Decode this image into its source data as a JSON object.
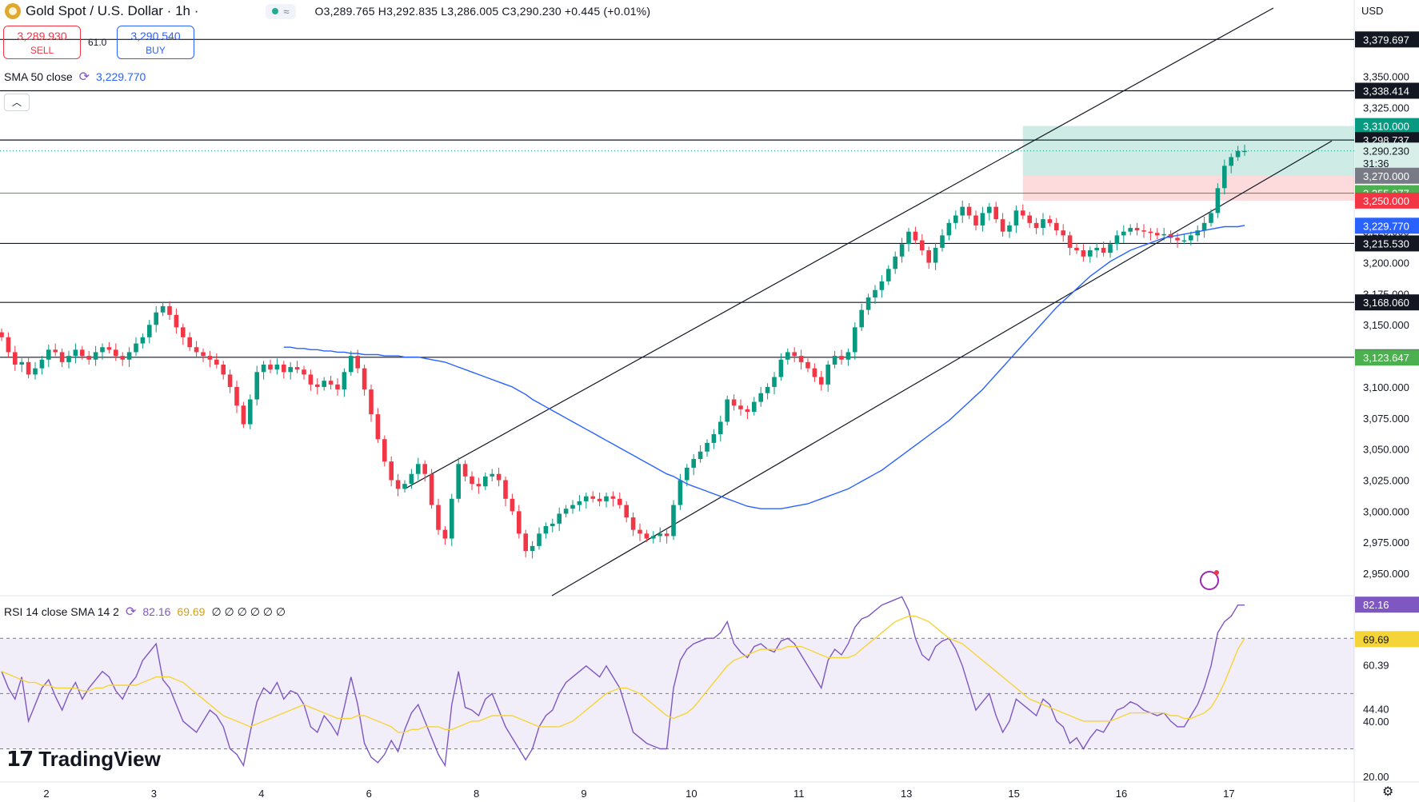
{
  "header": {
    "symbol": "Gold Spot / U.S. Dollar · 1h ·",
    "ohlc": "O3,289.765 H3,292.835 L3,286.005 C3,290.230 +0.445 (+0.01%)",
    "pill_icon": "wave-icon"
  },
  "trade": {
    "sell_price": "3,289.930",
    "sell_label": "SELL",
    "buy_price": "3,290.540",
    "buy_label": "BUY",
    "spread": "61.0"
  },
  "sma_legend": {
    "label": "SMA 50 close",
    "value": "3,229.770"
  },
  "rsi_legend": {
    "label": "RSI 14 close SMA 14 2",
    "value": "82.16",
    "sma_value": "69.69",
    "extra": "∅ ∅ ∅ ∅ ∅ ∅"
  },
  "currency": "USD",
  "branding": "TradingView",
  "colors": {
    "up": "#089981",
    "down": "#f23645",
    "sma": "#2962ff",
    "rsi": "#7e57c2",
    "rsi_sma": "#f5d43a",
    "level_line": "#131722",
    "green_level": "#4caf50"
  },
  "chart_data": [
    {
      "type": "candlestick",
      "title": "Gold Spot / U.S. Dollar · 1h",
      "x_ticks": [
        "2",
        "3",
        "4",
        "6",
        "8",
        "9",
        "10",
        "11",
        "13",
        "15",
        "16",
        "17"
      ],
      "x_tick_index": [
        0,
        16,
        32,
        48,
        64,
        80,
        96,
        112,
        128,
        144,
        160,
        176
      ],
      "y_ticks": [
        2950,
        2975,
        3000,
        3025,
        3050,
        3075,
        3100,
        3125,
        3150,
        3175,
        3200,
        3225,
        3250,
        3275,
        3300,
        3325,
        3350
      ],
      "y_range": [
        2932,
        3405
      ],
      "closes": [
        3140,
        3128,
        3118,
        3120,
        3110,
        3115,
        3122,
        3130,
        3128,
        3120,
        3125,
        3130,
        3125,
        3122,
        3128,
        3132,
        3130,
        3125,
        3122,
        3128,
        3135,
        3140,
        3150,
        3160,
        3165,
        3158,
        3148,
        3140,
        3132,
        3128,
        3125,
        3122,
        3118,
        3110,
        3100,
        3085,
        3070,
        3090,
        3112,
        3118,
        3114,
        3118,
        3112,
        3116,
        3114,
        3110,
        3102,
        3100,
        3105,
        3102,
        3098,
        3112,
        3125,
        3115,
        3098,
        3078,
        3058,
        3040,
        3025,
        3018,
        3022,
        3030,
        3038,
        3030,
        3005,
        2985,
        2978,
        3010,
        3038,
        3028,
        3022,
        3020,
        3028,
        3030,
        3025,
        3010,
        3000,
        2982,
        2968,
        2972,
        2982,
        2988,
        2990,
        2998,
        3002,
        3005,
        3008,
        3012,
        3010,
        3008,
        3012,
        3010,
        3005,
        2995,
        2985,
        2982,
        2978,
        2980,
        2982,
        2980,
        3005,
        3025,
        3035,
        3042,
        3048,
        3055,
        3062,
        3072,
        3090,
        3085,
        3082,
        3080,
        3088,
        3095,
        3100,
        3108,
        3122,
        3128,
        3125,
        3120,
        3115,
        3108,
        3102,
        3118,
        3125,
        3122,
        3128,
        3148,
        3162,
        3172,
        3178,
        3185,
        3195,
        3205,
        3215,
        3225,
        3218,
        3210,
        3200,
        3212,
        3222,
        3232,
        3238,
        3245,
        3238,
        3230,
        3240,
        3245,
        3235,
        3225,
        3230,
        3242,
        3238,
        3232,
        3228,
        3235,
        3232,
        3226,
        3222,
        3212,
        3210,
        3205,
        3210,
        3212,
        3208,
        3215,
        3222,
        3225,
        3228,
        3226,
        3225,
        3224,
        3222,
        3223,
        3220,
        3218,
        3218,
        3222,
        3226,
        3232,
        3240,
        3260,
        3278,
        3285,
        3290,
        3290
      ],
      "sma50": [
        3132,
        3132,
        3131,
        3131,
        3130,
        3130,
        3129,
        3129,
        3128,
        3128,
        3127,
        3127,
        3126,
        3126,
        3126,
        3125,
        3125,
        3125,
        3124,
        3124,
        3124,
        3123,
        3122,
        3121,
        3120,
        3118,
        3116,
        3114,
        3112,
        3110,
        3108,
        3106,
        3104,
        3102,
        3100,
        3097,
        3094,
        3090,
        3087,
        3084,
        3081,
        3078,
        3075,
        3072,
        3069,
        3066,
        3063,
        3060,
        3057,
        3054,
        3051,
        3048,
        3045,
        3042,
        3039,
        3036,
        3033,
        3030,
        3028,
        3025,
        3022,
        3020,
        3018,
        3016,
        3014,
        3012,
        3010,
        3008,
        3006,
        3004,
        3003,
        3002,
        3002,
        3002,
        3002,
        3003,
        3004,
        3005,
        3006,
        3008,
        3010,
        3012,
        3014,
        3016,
        3018,
        3021,
        3024,
        3027,
        3030,
        3033,
        3037,
        3041,
        3045,
        3049,
        3053,
        3057,
        3061,
        3065,
        3069,
        3073,
        3078,
        3083,
        3088,
        3093,
        3098,
        3104,
        3110,
        3116,
        3122,
        3128,
        3134,
        3140,
        3146,
        3152,
        3158,
        3164,
        3169,
        3174,
        3179,
        3184,
        3189,
        3193,
        3197,
        3201,
        3204,
        3207,
        3210,
        3212,
        3214,
        3216,
        3218,
        3220,
        3221,
        3222,
        3223,
        3224,
        3225,
        3226,
        3227,
        3228,
        3229,
        3229,
        3229,
        3230
      ]
    },
    {
      "type": "line",
      "title": "RSI 14 close SMA 14 2",
      "y_ticks": [
        20,
        40,
        44.4,
        60.39,
        69.69,
        82.16
      ],
      "y_range": [
        18,
        82.5
      ],
      "rsi": [
        58,
        52,
        48,
        56,
        40,
        46,
        52,
        55,
        49,
        44,
        50,
        54,
        48,
        52,
        55,
        58,
        56,
        51,
        48,
        53,
        56,
        62,
        65,
        68,
        55,
        52,
        46,
        40,
        38,
        36,
        40,
        44,
        42,
        38,
        30,
        28,
        24,
        36,
        47,
        52,
        50,
        54,
        48,
        51,
        50,
        46,
        38,
        36,
        42,
        39,
        35,
        45,
        56,
        46,
        32,
        27,
        25,
        28,
        33,
        29,
        37,
        43,
        46,
        40,
        34,
        28,
        24,
        46,
        58,
        45,
        44,
        42,
        48,
        50,
        44,
        38,
        34,
        30,
        26,
        30,
        38,
        42,
        44,
        50,
        54,
        56,
        58,
        60,
        58,
        56,
        60,
        56,
        52,
        44,
        36,
        34,
        32,
        31,
        30,
        30,
        52,
        62,
        66,
        68,
        69,
        70,
        70,
        72,
        76,
        68,
        65,
        63,
        67,
        68,
        66,
        65,
        69,
        70,
        68,
        64,
        60,
        56,
        52,
        62,
        66,
        64,
        68,
        74,
        77,
        78,
        80,
        82,
        83,
        84,
        85,
        80,
        70,
        64,
        62,
        67,
        69,
        70,
        66,
        60,
        52,
        44,
        47,
        50,
        42,
        36,
        40,
        48,
        46,
        44,
        42,
        48,
        46,
        40,
        38,
        32,
        34,
        30,
        34,
        37,
        36,
        40,
        44,
        45,
        47,
        46,
        44,
        43,
        42,
        43,
        40,
        38,
        38,
        42,
        46,
        52,
        60,
        72,
        76,
        78,
        82,
        82
      ],
      "rsi_sma": [
        58,
        57,
        56,
        55,
        54,
        54,
        53,
        53,
        52,
        52,
        52,
        52,
        51,
        51,
        52,
        52,
        53,
        53,
        53,
        53,
        53,
        54,
        55,
        56,
        56,
        56,
        55,
        54,
        52,
        50,
        48,
        46,
        44,
        42,
        41,
        40,
        39,
        38,
        39,
        40,
        41,
        42,
        43,
        44,
        45,
        46,
        45,
        44,
        43,
        42,
        41,
        41,
        41,
        42,
        42,
        41,
        40,
        39,
        38,
        36,
        36,
        37,
        37,
        38,
        38,
        38,
        37,
        37,
        38,
        39,
        40,
        40,
        41,
        42,
        42,
        42,
        42,
        41,
        40,
        39,
        38,
        38,
        38,
        38,
        39,
        40,
        42,
        44,
        46,
        48,
        50,
        51,
        52,
        52,
        51,
        50,
        48,
        46,
        44,
        42,
        41,
        42,
        43,
        45,
        48,
        51,
        54,
        57,
        60,
        62,
        63,
        64,
        65,
        66,
        66,
        66,
        66,
        67,
        67,
        67,
        66,
        65,
        64,
        63,
        63,
        63,
        63,
        64,
        66,
        68,
        70,
        72,
        74,
        76,
        77,
        78,
        78,
        77,
        76,
        74,
        72,
        70,
        69,
        68,
        66,
        64,
        62,
        60,
        58,
        56,
        54,
        52,
        50,
        48,
        47,
        46,
        45,
        44,
        43,
        42,
        41,
        40,
        40,
        40,
        40,
        40,
        41,
        42,
        43,
        43,
        43,
        43,
        43,
        43,
        42,
        42,
        41,
        41,
        42,
        43,
        45,
        49,
        54,
        60,
        66,
        70
      ]
    }
  ],
  "price_scale_labels": [
    {
      "text": "3,379.697",
      "value": 3379.697,
      "style": "dark"
    },
    {
      "text": "3,338.414",
      "value": 3338.414,
      "style": "dark"
    },
    {
      "text": "3,310.000",
      "value": 3310,
      "style": "teal"
    },
    {
      "text": "3,298.737",
      "value": 3298.737,
      "style": "dark"
    },
    {
      "text": "3,290.230",
      "value": 3290.23,
      "style": "light"
    },
    {
      "text": "31:36",
      "value": 3280,
      "style": "light"
    },
    {
      "text": "3,270.000",
      "value": 3270,
      "style": "gray"
    },
    {
      "text": "3,255.977",
      "value": 3255.977,
      "style": "green"
    },
    {
      "text": "3,250.000",
      "value": 3250,
      "style": "red"
    },
    {
      "text": "3,229.770",
      "value": 3229.77,
      "style": "blue"
    },
    {
      "text": "3,215.530",
      "value": 3215.53,
      "style": "dark"
    },
    {
      "text": "3,168.060",
      "value": 3168.06,
      "style": "dark"
    },
    {
      "text": "3,123.890",
      "value": 3123.89,
      "style": "dark"
    },
    {
      "text": "3,123.647",
      "value": 3123.647,
      "style": "green"
    }
  ],
  "rsi_scale_labels": [
    {
      "text": "82.16",
      "value": 82.16,
      "style": "purple"
    },
    {
      "text": "69.69",
      "value": 69.69,
      "style": "yellow"
    },
    {
      "text": "60.39",
      "value": 60.39,
      "style": "plain"
    },
    {
      "text": "44.40",
      "value": 44.4,
      "style": "plain"
    },
    {
      "text": "40.00",
      "value": 40,
      "style": "plain"
    },
    {
      "text": "20.00",
      "value": 20,
      "style": "plain"
    }
  ],
  "levels": [
    3379.697,
    3338.414,
    3298.737,
    3215.53,
    3168.06,
    3123.89
  ],
  "green_levels": [
    3255.977
  ],
  "position": {
    "entry": 3270,
    "target": 3310,
    "stop": 3250,
    "start_index": 152
  }
}
